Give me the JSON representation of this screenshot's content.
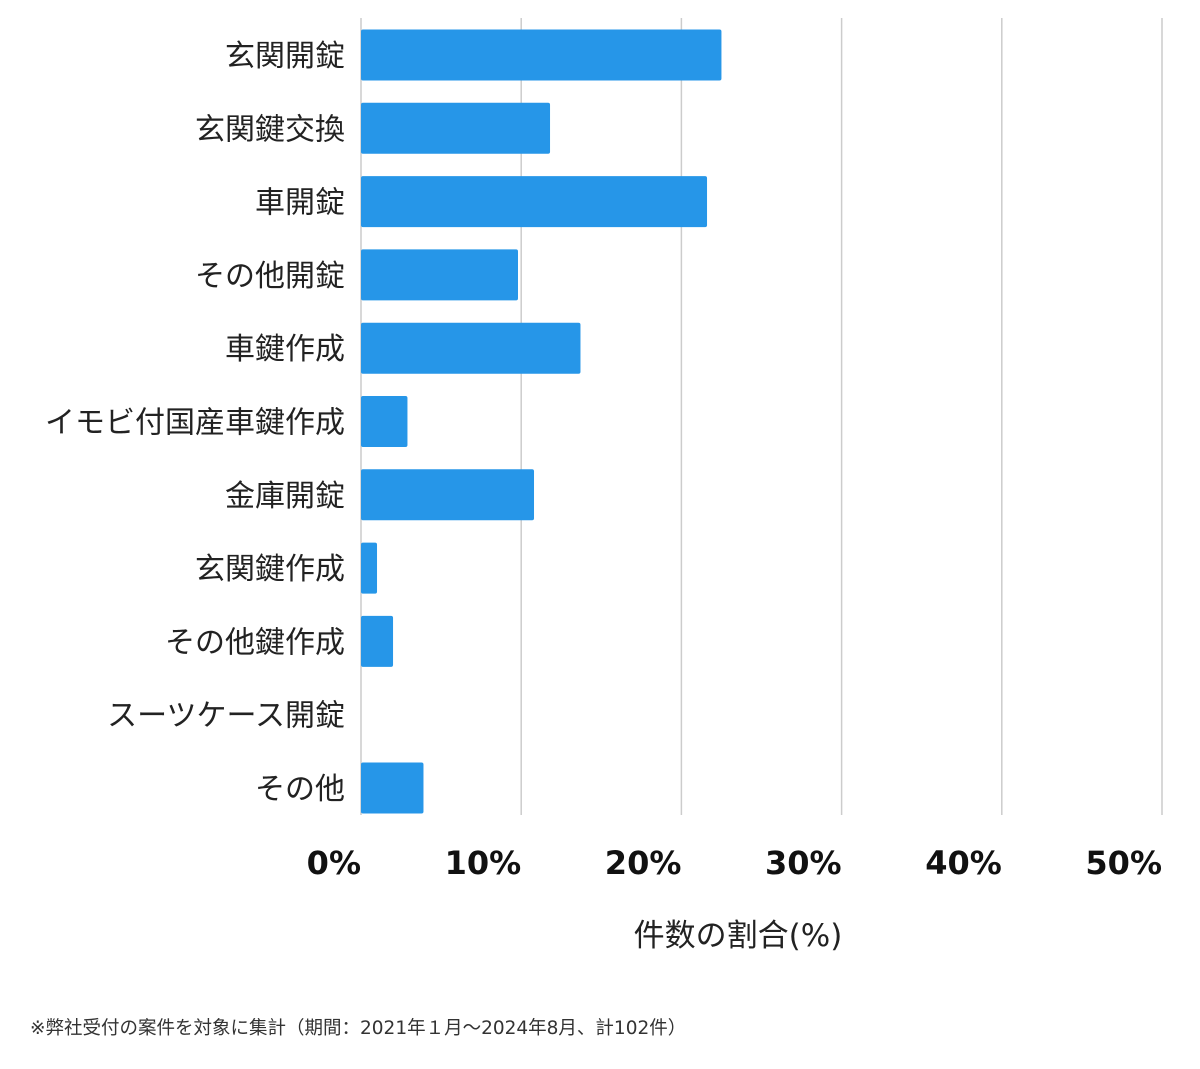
{
  "chart_data": {
    "type": "bar",
    "orientation": "horizontal",
    "categories": [
      "玄関開錠",
      "玄関鍵交換",
      "車開錠",
      "その他開錠",
      "車鍵作成",
      "イモビ付国産車鍵作成",
      "金庫開錠",
      "玄関鍵作成",
      "その他鍵作成",
      "スーツケース開錠",
      "その他"
    ],
    "values": [
      22.5,
      11.8,
      21.6,
      9.8,
      13.7,
      2.9,
      10.8,
      1.0,
      2.0,
      0.0,
      3.9
    ],
    "xlabel": "件数の割合(%)",
    "ylabel": "",
    "xlim": [
      0,
      50
    ],
    "xticks": [
      "0%",
      "10%",
      "20%",
      "30%",
      "40%",
      "50%"
    ],
    "grid": true,
    "bar_color": "#2696e8"
  },
  "footnote": "※弊社受付の案件を対象に集計（期間：2021年１月〜2024年8月、計102件）"
}
